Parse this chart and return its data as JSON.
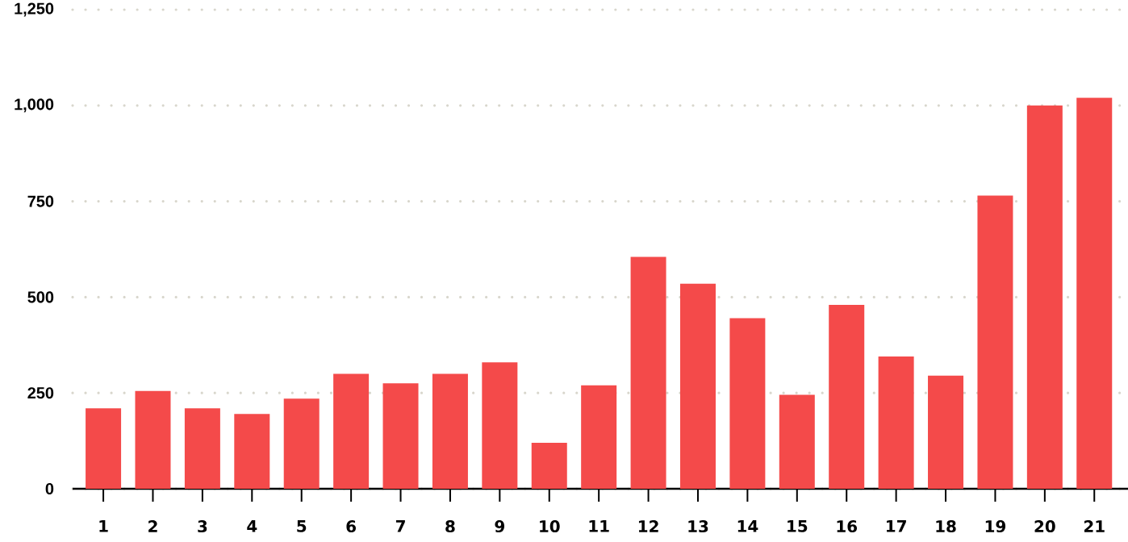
{
  "chart_data": {
    "type": "bar",
    "categories": [
      "1",
      "2",
      "3",
      "4",
      "5",
      "6",
      "7",
      "8",
      "9",
      "10",
      "11",
      "12",
      "13",
      "14",
      "15",
      "16",
      "17",
      "18",
      "19",
      "20",
      "21"
    ],
    "values": [
      210,
      255,
      210,
      195,
      235,
      300,
      275,
      300,
      330,
      120,
      270,
      605,
      535,
      445,
      245,
      480,
      345,
      295,
      765,
      1000,
      1020
    ],
    "color": "#f44a4a",
    "ylim": [
      0,
      1250
    ],
    "yticks": [
      0,
      250,
      500,
      750,
      {
        "value": 1000,
        "label": "1,000"
      },
      {
        "value": 1250,
        "label": "1,250"
      }
    ],
    "grid": "y"
  }
}
